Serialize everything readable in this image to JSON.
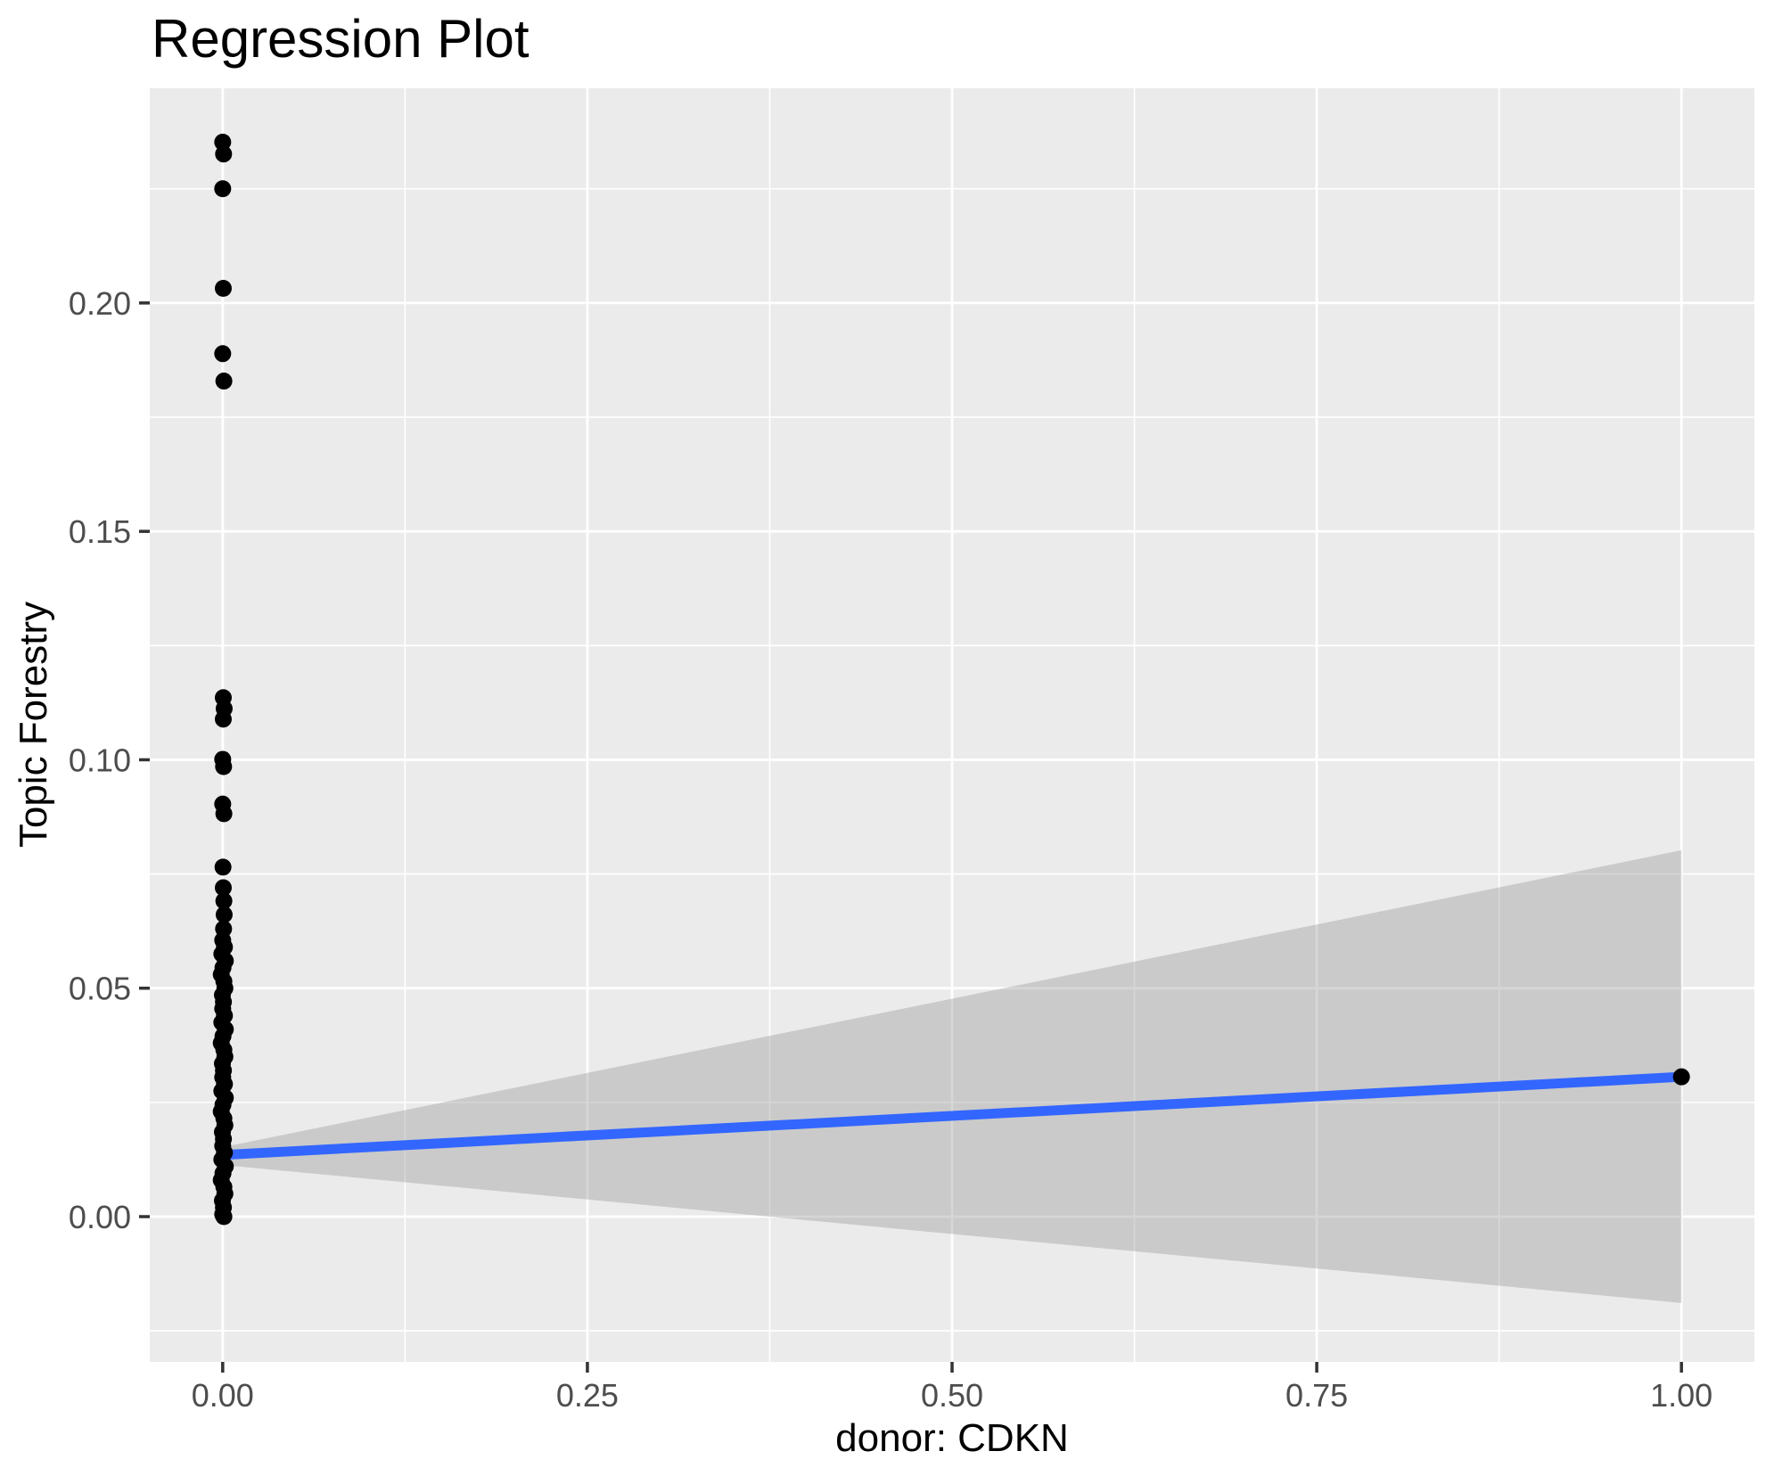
{
  "chart_data": {
    "type": "scatter",
    "title": "Regression Plot",
    "xlabel": "donor: CDKN",
    "ylabel": "Topic Forestry",
    "xlim": [
      -0.05,
      1.05
    ],
    "ylim": [
      -0.0318,
      0.247
    ],
    "x_tick_values": [
      0,
      0.25,
      0.5,
      0.75,
      1.0
    ],
    "x_tick_labels": [
      "0.00",
      "0.25",
      "0.50",
      "0.75",
      "1.00"
    ],
    "y_tick_values": [
      0,
      0.05,
      0.1,
      0.15,
      0.2
    ],
    "y_tick_labels": [
      "0.00",
      "0.05",
      "0.10",
      "0.15",
      "0.20"
    ],
    "x_minor_values": [
      0.125,
      0.375,
      0.625,
      0.875
    ],
    "y_minor_values": [
      -0.025,
      0.025,
      0.075,
      0.125,
      0.175,
      0.225
    ],
    "grid_on": true,
    "legend": "none",
    "colors": {
      "panel_bg": "#EBEBEB",
      "grid": "#FFFFFF",
      "point": "#000000",
      "line": "#3366FF",
      "ribbon": "#999999",
      "tick_mark": "#333333",
      "tick_label": "#4D4D4D",
      "title_text": "#000000"
    },
    "ribbon_opacity": 0.4,
    "regression": {
      "x": [
        0,
        1
      ],
      "y": [
        0.0135,
        0.0306
      ]
    },
    "ribbon": {
      "x": [
        0,
        1
      ],
      "upper": [
        0.0152,
        0.0802
      ],
      "lower": [
        0.0113,
        -0.0189
      ]
    },
    "points": [
      {
        "x": 0,
        "y": 0.2352
      },
      {
        "x": 0.0006,
        "y": 0.2326
      },
      {
        "x": 0,
        "y": 0.225
      },
      {
        "x": 0.0004,
        "y": 0.2032
      },
      {
        "x": 0,
        "y": 0.1889
      },
      {
        "x": 0.0008,
        "y": 0.1829
      },
      {
        "x": 0.0004,
        "y": 0.1136
      },
      {
        "x": 0.001,
        "y": 0.1112
      },
      {
        "x": 0.0004,
        "y": 0.1089
      },
      {
        "x": 0,
        "y": 0.1001
      },
      {
        "x": 0.0006,
        "y": 0.0985
      },
      {
        "x": 0,
        "y": 0.0903
      },
      {
        "x": 0.0008,
        "y": 0.0882
      },
      {
        "x": 0.0002,
        "y": 0.0765
      },
      {
        "x": 0.0004,
        "y": 0.072
      },
      {
        "x": 0.0008,
        "y": 0.0691
      },
      {
        "x": 0.001,
        "y": 0.0661
      },
      {
        "x": 0.0006,
        "y": 0.063
      },
      {
        "x": 0,
        "y": 0.0605
      },
      {
        "x": 0.0012,
        "y": 0.059
      },
      {
        "x": -0.0006,
        "y": 0.0575
      },
      {
        "x": 0.0018,
        "y": 0.056
      },
      {
        "x": 0.0002,
        "y": 0.0545
      },
      {
        "x": -0.001,
        "y": 0.053
      },
      {
        "x": 0.0008,
        "y": 0.0515
      },
      {
        "x": 0.0015,
        "y": 0.05
      },
      {
        "x": -0.0002,
        "y": 0.0485
      },
      {
        "x": 0.0005,
        "y": 0.047
      },
      {
        "x": 0,
        "y": 0.0455
      },
      {
        "x": 0.0012,
        "y": 0.044
      },
      {
        "x": -0.0006,
        "y": 0.0425
      },
      {
        "x": 0.0018,
        "y": 0.041
      },
      {
        "x": 0.0002,
        "y": 0.0395
      },
      {
        "x": -0.001,
        "y": 0.038
      },
      {
        "x": 0.0008,
        "y": 0.0365
      },
      {
        "x": 0.0015,
        "y": 0.035
      },
      {
        "x": -0.0002,
        "y": 0.0335
      },
      {
        "x": 0.0005,
        "y": 0.032
      },
      {
        "x": 0,
        "y": 0.0305
      },
      {
        "x": 0.0012,
        "y": 0.029
      },
      {
        "x": -0.0006,
        "y": 0.0275
      },
      {
        "x": 0.0018,
        "y": 0.026
      },
      {
        "x": 0.0002,
        "y": 0.0245
      },
      {
        "x": -0.001,
        "y": 0.023
      },
      {
        "x": 0.0008,
        "y": 0.0215
      },
      {
        "x": 0.0015,
        "y": 0.02
      },
      {
        "x": -0.0002,
        "y": 0.0185
      },
      {
        "x": 0.0005,
        "y": 0.017
      },
      {
        "x": 0,
        "y": 0.0155
      },
      {
        "x": 0.0012,
        "y": 0.014
      },
      {
        "x": -0.0006,
        "y": 0.0125
      },
      {
        "x": 0.0018,
        "y": 0.011
      },
      {
        "x": 0.0002,
        "y": 0.0095
      },
      {
        "x": -0.001,
        "y": 0.008
      },
      {
        "x": 0.0008,
        "y": 0.0065
      },
      {
        "x": 0.0015,
        "y": 0.005
      },
      {
        "x": -0.0002,
        "y": 0.0035
      },
      {
        "x": 0.0005,
        "y": 0.002
      },
      {
        "x": 0,
        "y": 0.0005
      },
      {
        "x": 0.0008,
        "y": 0.0
      },
      {
        "x": 1.0,
        "y": 0.0306
      }
    ]
  }
}
